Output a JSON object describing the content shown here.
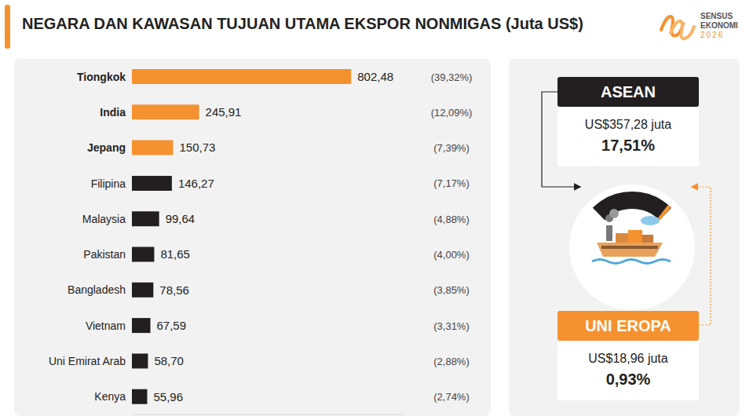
{
  "chart_data": {
    "type": "bar",
    "orientation": "horizontal",
    "title": "NEGARA DAN KAWASAN TUJUAN UTAMA EKSPOR NONMIGAS (Juta US$)",
    "categories": [
      "Tiongkok",
      "India",
      "Jepang",
      "Filipina",
      "Malaysia",
      "Pakistan",
      "Bangladesh",
      "Vietnam",
      "Uni Emirat Arab",
      "Kenya"
    ],
    "values": [
      802.48,
      245.91,
      150.73,
      146.27,
      99.64,
      81.65,
      78.56,
      67.59,
      58.7,
      55.96
    ],
    "value_labels": [
      "802,48",
      "245,91",
      "150,73",
      "146,27",
      "99,64",
      "81,65",
      "78,56",
      "67,59",
      "58,70",
      "55,96"
    ],
    "share_labels": [
      "(39,32%)",
      "(12,09%)",
      "(7,39%)",
      "(7,17%)",
      "(4,88%)",
      "(4,00%)",
      "(3,85%)",
      "(3,31%)",
      "(2,88%)",
      "(2,74%)"
    ],
    "colors": [
      "#F5922F",
      "#F5922F",
      "#F5922F",
      "#231F20",
      "#231F20",
      "#231F20",
      "#231F20",
      "#231F20",
      "#231F20",
      "#231F20"
    ],
    "xlim": [
      0,
      1000
    ],
    "data_labels": true,
    "tick_labels": "y",
    "grid": false
  },
  "side_panel": [
    {
      "name": "ASEAN",
      "value_label": "US$357,28 juta",
      "share_label": "17,51%",
      "color": "#231F20"
    },
    {
      "name": "UNI EROPA",
      "value_label": "US$18,96 juta",
      "share_label": "0,93%",
      "color": "#F5922F"
    }
  ],
  "logo": {
    "lines": [
      "SENSUS",
      "EKONOMI",
      "2026"
    ]
  }
}
